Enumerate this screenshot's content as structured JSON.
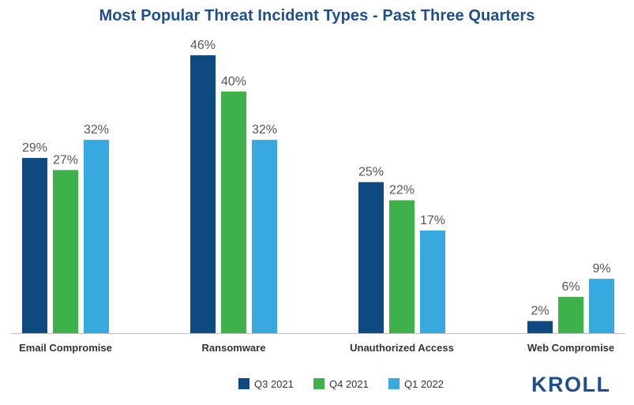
{
  "chart_data": {
    "type": "bar",
    "title": "Most Popular Threat Incident Types - Past Three Quarters",
    "categories": [
      "Email Compromise",
      "Ransomware",
      "Unauthorized Access",
      "Web Compromise"
    ],
    "series": [
      {
        "name": "Q3 2021",
        "color": "#0e4a80",
        "values": [
          29,
          46,
          25,
          2
        ]
      },
      {
        "name": "Q4 2021",
        "color": "#3fb14a",
        "values": [
          27,
          40,
          22,
          6
        ]
      },
      {
        "name": "Q1 2022",
        "color": "#38a9de",
        "values": [
          32,
          32,
          17,
          9
        ]
      }
    ],
    "value_suffix": "%",
    "ylim": [
      0,
      50
    ],
    "legend_position": "bottom-center",
    "grid": false
  },
  "brand": {
    "logo_text": "KROLL",
    "color": "#1f4e8c"
  }
}
